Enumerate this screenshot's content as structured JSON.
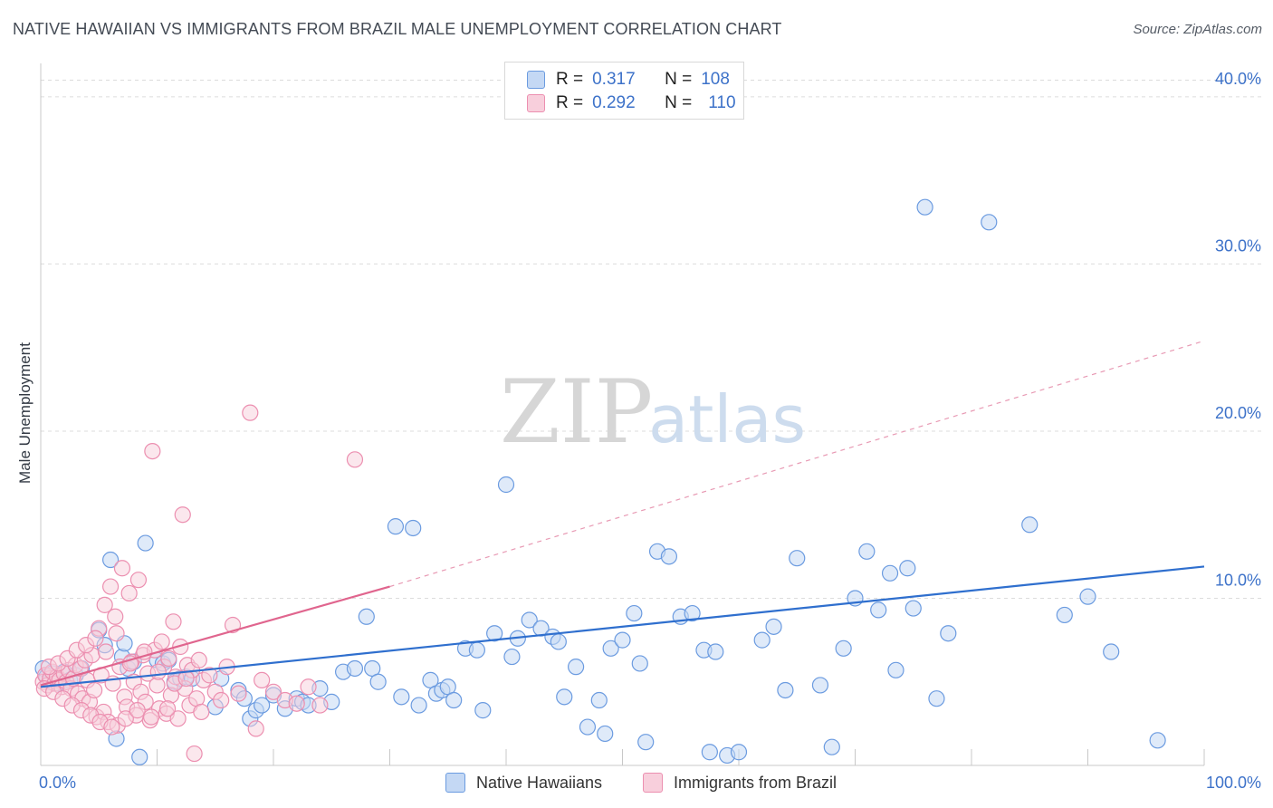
{
  "title": "NATIVE HAWAIIAN VS IMMIGRANTS FROM BRAZIL MALE UNEMPLOYMENT CORRELATION CHART",
  "source": "Source: ZipAtlas.com",
  "watermark": {
    "zip": "ZIP",
    "atlas": "atlas"
  },
  "legend": {
    "series1": {
      "r_label": "R =",
      "r_value": "0.317",
      "n_label": "N =",
      "n_value": "108"
    },
    "series2": {
      "r_label": "R =",
      "r_value": "0.292",
      "n_label": "N =",
      "n_value": "110"
    }
  },
  "bottom_legend": {
    "series1": "Native Hawaiians",
    "series2": "Immigrants from Brazil"
  },
  "colors": {
    "blue": "#6b9be0",
    "blue_fill": "#c4d8f4",
    "blue_line": "#2f6fce",
    "pink": "#ec8fb0",
    "pink_fill": "#f8cfdc",
    "pink_line": "#e0658e",
    "axis_text": "#3d72c9",
    "grid": "#dcdcdc"
  },
  "chart_data": {
    "type": "scatter",
    "xlabel": "",
    "ylabel": "Male Unemployment",
    "xlim": [
      0,
      100
    ],
    "ylim": [
      0,
      42
    ],
    "x_tick_labels": [
      {
        "value": 0,
        "label": "0.0%"
      },
      {
        "value": 100,
        "label": "100.0%"
      }
    ],
    "y_ticks": [
      {
        "value": 10,
        "label": "10.0%"
      },
      {
        "value": 20,
        "label": "20.0%"
      },
      {
        "value": 30,
        "label": "30.0%"
      },
      {
        "value": 40,
        "label": "40.0%"
      }
    ],
    "x_minor_ticks": [
      10,
      20,
      30,
      40,
      50,
      60,
      70,
      80,
      90,
      100
    ],
    "grid": true,
    "legend_position": "top-center",
    "series": [
      {
        "name": "Native Hawaiians",
        "color": "#6b9be0",
        "trendline": {
          "x": [
            0,
            100
          ],
          "y": [
            4.7,
            11.9
          ],
          "style": "solid"
        },
        "points": [
          [
            0.2,
            5.8
          ],
          [
            0.5,
            5.3
          ],
          [
            0.8,
            5.0
          ],
          [
            1.0,
            5.5
          ],
          [
            1.2,
            5.2
          ],
          [
            1.5,
            4.9
          ],
          [
            2.0,
            5.6
          ],
          [
            2.5,
            5.1
          ],
          [
            3.0,
            5.4
          ],
          [
            3.5,
            5.8
          ],
          [
            5.0,
            8.1
          ],
          [
            5.5,
            7.2
          ],
          [
            6.0,
            12.3
          ],
          [
            6.5,
            1.6
          ],
          [
            7.0,
            6.5
          ],
          [
            7.2,
            7.3
          ],
          [
            7.5,
            5.8
          ],
          [
            8.0,
            6.2
          ],
          [
            8.5,
            0.5
          ],
          [
            9.0,
            13.3
          ],
          [
            10.0,
            6.3
          ],
          [
            10.5,
            6.1
          ],
          [
            11.0,
            6.3
          ],
          [
            11.5,
            5.0
          ],
          [
            12.0,
            5.2
          ],
          [
            12.5,
            5.3
          ],
          [
            13.0,
            5.2
          ],
          [
            15.0,
            3.5
          ],
          [
            15.5,
            5.2
          ],
          [
            17.0,
            4.5
          ],
          [
            17.5,
            4.0
          ],
          [
            18.0,
            2.8
          ],
          [
            18.5,
            3.3
          ],
          [
            19.0,
            3.6
          ],
          [
            20.0,
            4.2
          ],
          [
            21.0,
            3.4
          ],
          [
            22.0,
            4.0
          ],
          [
            22.5,
            3.8
          ],
          [
            23.0,
            3.6
          ],
          [
            24.0,
            4.6
          ],
          [
            25.0,
            3.8
          ],
          [
            26.0,
            5.6
          ],
          [
            27.0,
            5.8
          ],
          [
            28.5,
            5.8
          ],
          [
            31.0,
            4.1
          ],
          [
            32.5,
            3.6
          ],
          [
            33.5,
            5.1
          ],
          [
            34.0,
            4.3
          ],
          [
            34.5,
            4.5
          ],
          [
            35.0,
            4.7
          ],
          [
            35.5,
            3.9
          ],
          [
            36.5,
            7.0
          ],
          [
            37.5,
            6.9
          ],
          [
            39.0,
            7.9
          ],
          [
            40.5,
            6.5
          ],
          [
            41.0,
            7.6
          ],
          [
            42.0,
            8.7
          ],
          [
            43.0,
            8.2
          ],
          [
            44.0,
            7.7
          ],
          [
            44.5,
            7.4
          ],
          [
            45.0,
            4.1
          ],
          [
            46.0,
            5.9
          ],
          [
            47.0,
            2.3
          ],
          [
            48.0,
            3.9
          ],
          [
            49.0,
            7.0
          ],
          [
            50.0,
            7.5
          ],
          [
            51.0,
            9.1
          ],
          [
            51.5,
            6.1
          ],
          [
            52.0,
            1.4
          ],
          [
            53.0,
            12.8
          ],
          [
            54.0,
            12.5
          ],
          [
            55.0,
            8.9
          ],
          [
            56.0,
            9.1
          ],
          [
            57.0,
            6.9
          ],
          [
            58.0,
            6.8
          ],
          [
            59.0,
            0.6
          ],
          [
            60.0,
            0.8
          ],
          [
            62.0,
            7.5
          ],
          [
            63.0,
            8.3
          ],
          [
            65.0,
            12.4
          ],
          [
            67.0,
            4.8
          ],
          [
            68.0,
            1.1
          ],
          [
            70.0,
            10.0
          ],
          [
            71.0,
            12.8
          ],
          [
            72.0,
            9.3
          ],
          [
            73.0,
            11.5
          ],
          [
            74.5,
            11.8
          ],
          [
            75.0,
            9.4
          ],
          [
            77.0,
            4.0
          ],
          [
            78.0,
            7.9
          ],
          [
            76.0,
            33.4
          ],
          [
            81.5,
            32.5
          ],
          [
            73.5,
            5.7
          ],
          [
            85.0,
            14.4
          ],
          [
            88.0,
            9.0
          ],
          [
            90.0,
            10.1
          ],
          [
            92.0,
            6.8
          ],
          [
            96.0,
            1.5
          ],
          [
            40.0,
            16.8
          ],
          [
            30.5,
            14.3
          ],
          [
            32.0,
            14.2
          ],
          [
            28.0,
            8.9
          ],
          [
            29.0,
            5.0
          ],
          [
            38.0,
            3.3
          ],
          [
            48.5,
            1.9
          ],
          [
            57.5,
            0.8
          ],
          [
            64.0,
            4.5
          ],
          [
            69.0,
            7.0
          ]
        ]
      },
      {
        "name": "Immigrants from Brazil",
        "color": "#ec8fb0",
        "trendline": {
          "x": [
            0,
            30
          ],
          "y": [
            4.8,
            10.7
          ],
          "style": "solid",
          "dashed_extension": {
            "x": [
              30,
              100
            ],
            "y": [
              10.7,
              25.4
            ]
          }
        },
        "points": [
          [
            0.2,
            5.0
          ],
          [
            0.4,
            5.4
          ],
          [
            0.6,
            4.8
          ],
          [
            0.8,
            5.2
          ],
          [
            1.0,
            5.6
          ],
          [
            1.2,
            4.9
          ],
          [
            1.4,
            5.3
          ],
          [
            1.6,
            5.1
          ],
          [
            1.8,
            4.7
          ],
          [
            2.0,
            5.5
          ],
          [
            2.2,
            5.0
          ],
          [
            2.4,
            5.7
          ],
          [
            2.6,
            4.6
          ],
          [
            2.8,
            5.2
          ],
          [
            3.0,
            6.0
          ],
          [
            3.2,
            4.3
          ],
          [
            3.4,
            5.8
          ],
          [
            3.6,
            4.0
          ],
          [
            3.8,
            6.3
          ],
          [
            4.0,
            5.1
          ],
          [
            4.2,
            3.8
          ],
          [
            4.4,
            6.6
          ],
          [
            4.6,
            4.5
          ],
          [
            4.8,
            2.9
          ],
          [
            5.0,
            8.2
          ],
          [
            5.2,
            5.4
          ],
          [
            5.4,
            3.2
          ],
          [
            5.6,
            6.8
          ],
          [
            5.8,
            2.6
          ],
          [
            6.0,
            10.7
          ],
          [
            6.2,
            4.9
          ],
          [
            6.4,
            8.9
          ],
          [
            6.6,
            2.4
          ],
          [
            6.8,
            5.9
          ],
          [
            7.0,
            11.8
          ],
          [
            7.2,
            4.1
          ],
          [
            7.4,
            3.5
          ],
          [
            7.6,
            10.3
          ],
          [
            7.8,
            6.2
          ],
          [
            8.0,
            5.0
          ],
          [
            8.2,
            3.0
          ],
          [
            8.4,
            11.1
          ],
          [
            8.6,
            4.4
          ],
          [
            8.8,
            6.6
          ],
          [
            9.0,
            3.8
          ],
          [
            9.2,
            5.5
          ],
          [
            9.4,
            2.7
          ],
          [
            9.6,
            18.8
          ],
          [
            9.8,
            6.9
          ],
          [
            10.0,
            4.8
          ],
          [
            10.2,
            3.4
          ],
          [
            10.4,
            7.4
          ],
          [
            10.6,
            5.9
          ],
          [
            10.8,
            3.1
          ],
          [
            11.0,
            6.4
          ],
          [
            11.2,
            4.2
          ],
          [
            11.4,
            8.6
          ],
          [
            11.6,
            5.3
          ],
          [
            11.8,
            2.8
          ],
          [
            12.0,
            7.1
          ],
          [
            12.2,
            15.0
          ],
          [
            12.4,
            4.6
          ],
          [
            12.6,
            6.0
          ],
          [
            12.8,
            3.6
          ],
          [
            13.0,
            5.7
          ],
          [
            13.2,
            0.7
          ],
          [
            13.4,
            4.0
          ],
          [
            13.6,
            6.3
          ],
          [
            13.8,
            3.2
          ],
          [
            14.0,
            5.1
          ],
          [
            14.5,
            5.4
          ],
          [
            15.0,
            4.4
          ],
          [
            15.5,
            3.9
          ],
          [
            16.0,
            5.9
          ],
          [
            16.5,
            8.4
          ],
          [
            17.0,
            4.3
          ],
          [
            18.0,
            21.1
          ],
          [
            18.5,
            2.2
          ],
          [
            19.0,
            5.1
          ],
          [
            20.0,
            4.4
          ],
          [
            21.0,
            3.9
          ],
          [
            22.0,
            3.7
          ],
          [
            23.0,
            4.7
          ],
          [
            24.0,
            3.6
          ],
          [
            0.3,
            4.6
          ],
          [
            0.7,
            5.9
          ],
          [
            1.1,
            4.4
          ],
          [
            1.5,
            6.1
          ],
          [
            1.9,
            4.0
          ],
          [
            2.3,
            6.4
          ],
          [
            2.7,
            3.6
          ],
          [
            3.1,
            6.9
          ],
          [
            3.5,
            3.3
          ],
          [
            3.9,
            7.2
          ],
          [
            4.3,
            3.0
          ],
          [
            4.7,
            7.6
          ],
          [
            5.1,
            2.6
          ],
          [
            5.5,
            9.6
          ],
          [
            6.1,
            2.3
          ],
          [
            6.5,
            7.9
          ],
          [
            7.3,
            2.8
          ],
          [
            7.7,
            6.1
          ],
          [
            8.3,
            3.3
          ],
          [
            8.9,
            6.8
          ],
          [
            9.5,
            2.9
          ],
          [
            10.1,
            5.6
          ],
          [
            10.9,
            3.4
          ],
          [
            11.5,
            4.9
          ],
          [
            12.5,
            5.2
          ],
          [
            27.0,
            18.3
          ]
        ]
      }
    ]
  }
}
